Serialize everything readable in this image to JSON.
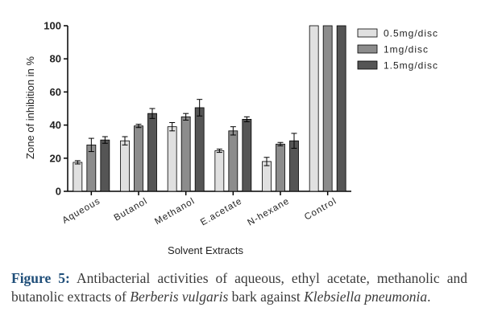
{
  "chart_data": {
    "type": "bar",
    "ylabel": "Zone of inhibition in %",
    "xlabel": "Solvent Extracts",
    "ylim": [
      0,
      100
    ],
    "yticks": [
      0,
      20,
      40,
      60,
      80,
      100
    ],
    "grid": false,
    "legend_position": "top-right",
    "categories": [
      "Aqueous",
      "Butanol",
      "Methanol",
      "E.acetate",
      "N-hexane",
      "Control"
    ],
    "series": [
      {
        "name": "0.5mg/disc",
        "color": "#e0e0e0",
        "values": [
          17.5,
          30.5,
          39,
          24.5,
          18,
          100
        ],
        "errors": [
          1,
          2.5,
          2.5,
          1,
          2.5,
          0
        ]
      },
      {
        "name": "1mg/disc",
        "color": "#8c8c8c",
        "values": [
          28,
          39.5,
          45,
          36.5,
          28.5,
          100
        ],
        "errors": [
          4,
          1,
          2,
          2.5,
          1,
          0
        ]
      },
      {
        "name": "1.5mg/disc",
        "color": "#555555",
        "values": [
          31,
          47,
          50.5,
          43.5,
          30.5,
          100
        ],
        "errors": [
          2,
          3,
          5,
          1.5,
          4.5,
          0
        ]
      }
    ]
  },
  "caption": {
    "label": "Figure 5:",
    "text_1": "Antibacterial activities of aqueous, ethyl acetate, methanolic and butanolic extracts of",
    "species": "Berberis vulgaris",
    "text_2": "bark against",
    "organism": "Klebsiella pneumonia",
    "end": "."
  }
}
